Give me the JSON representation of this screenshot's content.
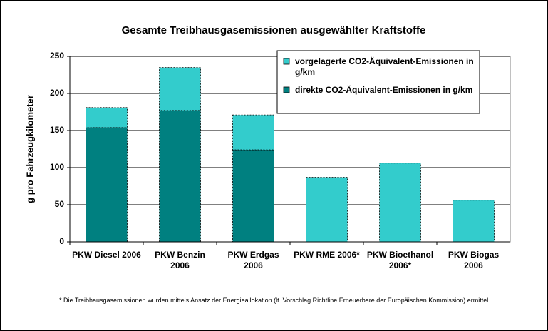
{
  "chart_data": {
    "type": "stacked-bar",
    "title": "Gesamte Treibhausgasemissionen ausgewählter Kraftstoffe",
    "y_label": "g pro Fahrzeugkilometer",
    "categories": [
      "PKW Diesel 2006",
      "PKW Benzin 2006",
      "PKW Erdgas 2006",
      "PKW RME 2006*",
      "PKW Bioethanol 2006*",
      "PKW Biogas 2006"
    ],
    "series": [
      {
        "name": "direkte CO2-Äquivalent-Emissionen in g/km",
        "color": "#008080",
        "values": [
          154,
          177,
          124,
          0,
          0,
          0
        ]
      },
      {
        "name": "vorgelagerte CO2-Äquivalent-Emissionen in g/km",
        "color": "#33cccc",
        "values": [
          27,
          58,
          47,
          87,
          106,
          56
        ]
      }
    ],
    "ylim": [
      0,
      250
    ],
    "yticks": [
      0,
      50,
      100,
      150,
      200,
      250
    ],
    "grid": true,
    "footnote": "* Die Treibhausgasemissionen wurden mittels Ansatz der Energieallokation (lt. Vorschlag Richtline Erneuerbare der Europäischen Kommission) ermittel."
  }
}
